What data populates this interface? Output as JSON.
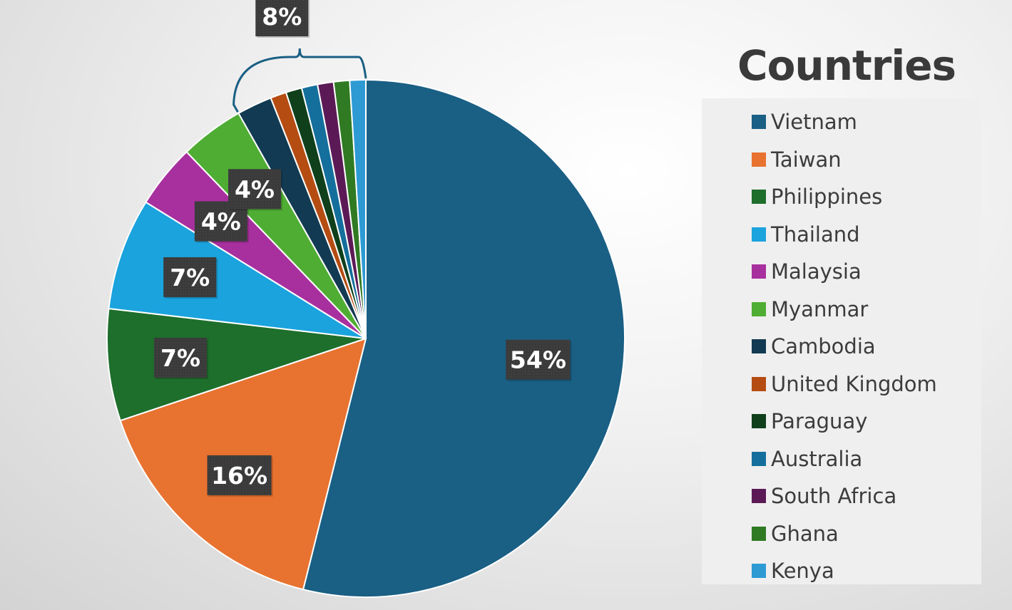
{
  "chart_data": {
    "type": "pie",
    "title": "",
    "start_angle_deg": 0,
    "direction": "clockwise",
    "slices": [
      {
        "label": "Vietnam",
        "value": 54,
        "color": "#1a5f84",
        "data_label": "54%"
      },
      {
        "label": "Taiwan",
        "value": 16,
        "color": "#e8722f",
        "data_label": "16%"
      },
      {
        "label": "Philippines",
        "value": 7,
        "color": "#1e6e2c",
        "data_label": "7%"
      },
      {
        "label": "Thailand",
        "value": 7,
        "color": "#1aa3dd",
        "data_label": "7%"
      },
      {
        "label": "Malaysia",
        "value": 4,
        "color": "#a8309e",
        "data_label": "4%"
      },
      {
        "label": "Myanmar",
        "value": 4,
        "color": "#4fad33",
        "data_label": "4%"
      },
      {
        "label": "Cambodia",
        "value": 2.2,
        "color": "#123a52",
        "data_label": ""
      },
      {
        "label": "United Kingdom",
        "value": 1,
        "color": "#b54c12",
        "data_label": ""
      },
      {
        "label": "Paraguay",
        "value": 1,
        "color": "#0f3f1b",
        "data_label": ""
      },
      {
        "label": "Australia",
        "value": 1,
        "color": "#156f9c",
        "data_label": ""
      },
      {
        "label": "South Africa",
        "value": 1,
        "color": "#5b1a56",
        "data_label": ""
      },
      {
        "label": "Ghana",
        "value": 1,
        "color": "#2f7a22",
        "data_label": ""
      },
      {
        "label": "Kenya",
        "value": 1,
        "color": "#2d9ad4",
        "data_label": ""
      }
    ],
    "group_annotation": {
      "label": "8%",
      "from_slice": "Cambodia",
      "to_slice": "Kenya"
    },
    "legend": {
      "title": "Countries",
      "position": "right"
    }
  }
}
